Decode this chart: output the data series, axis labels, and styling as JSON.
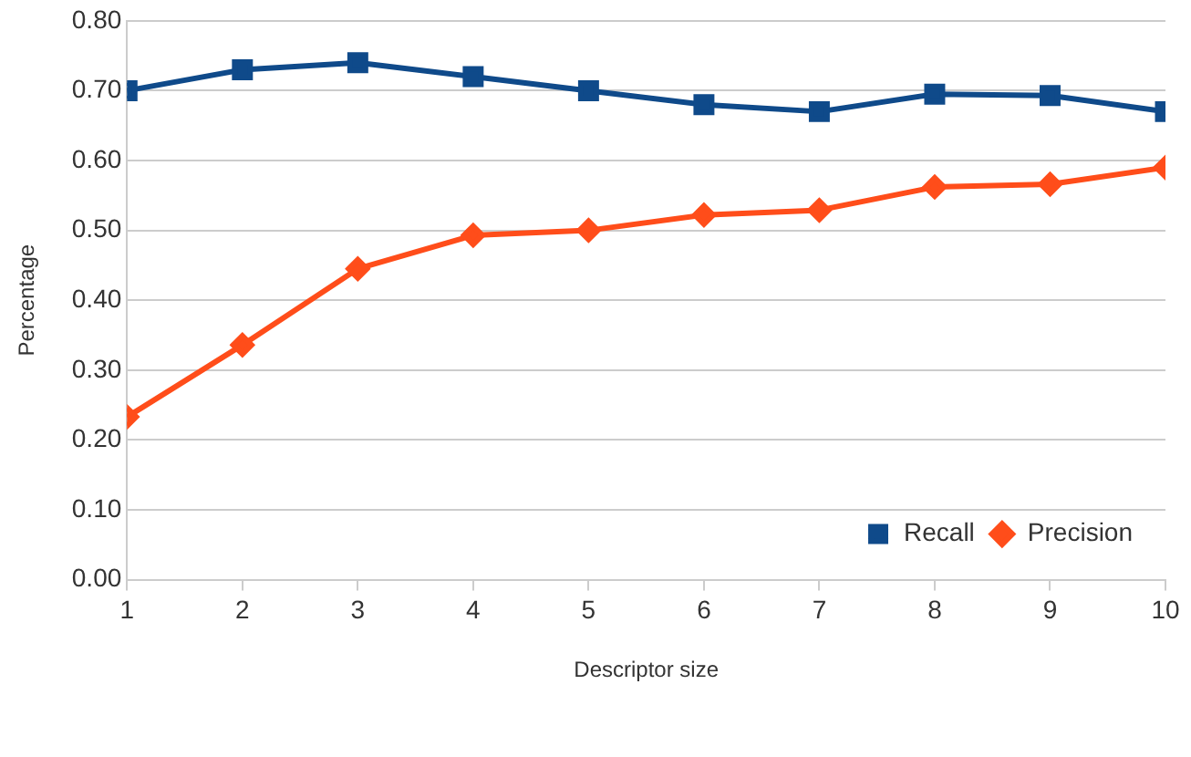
{
  "chart_data": {
    "type": "line",
    "xlabel": "Descriptor size",
    "ylabel": "Percentage",
    "x": [
      1,
      2,
      3,
      4,
      5,
      6,
      7,
      8,
      9,
      10
    ],
    "xlim": [
      1,
      10
    ],
    "xticks": [
      1,
      2,
      3,
      4,
      5,
      6,
      7,
      8,
      9,
      10
    ],
    "ylim": [
      0,
      0.8
    ],
    "yticks": [
      {
        "value": 0,
        "label": "0.00"
      },
      {
        "value": 0.1,
        "label": "0.10"
      },
      {
        "value": 0.2,
        "label": "0.20"
      },
      {
        "value": 0.3,
        "label": "0.30"
      },
      {
        "value": 0.4,
        "label": "0.40"
      },
      {
        "value": 0.5,
        "label": "0.50"
      },
      {
        "value": 0.6,
        "label": "0.60"
      },
      {
        "value": 0.7,
        "label": "0.70"
      },
      {
        "value": 0.8,
        "label": "0.80"
      }
    ],
    "series": [
      {
        "name": "Recall",
        "color": "#0f4a8a",
        "marker": "square",
        "values": [
          0.7,
          0.73,
          0.74,
          0.72,
          0.7,
          0.68,
          0.67,
          0.695,
          0.693,
          0.67
        ]
      },
      {
        "name": "Precision",
        "color": "#ff4d1a",
        "marker": "diamond",
        "values": [
          0.233,
          0.336,
          0.445,
          0.493,
          0.5,
          0.522,
          0.529,
          0.562,
          0.566,
          0.59
        ]
      }
    ],
    "grid": "y",
    "legend": "bottom right"
  }
}
